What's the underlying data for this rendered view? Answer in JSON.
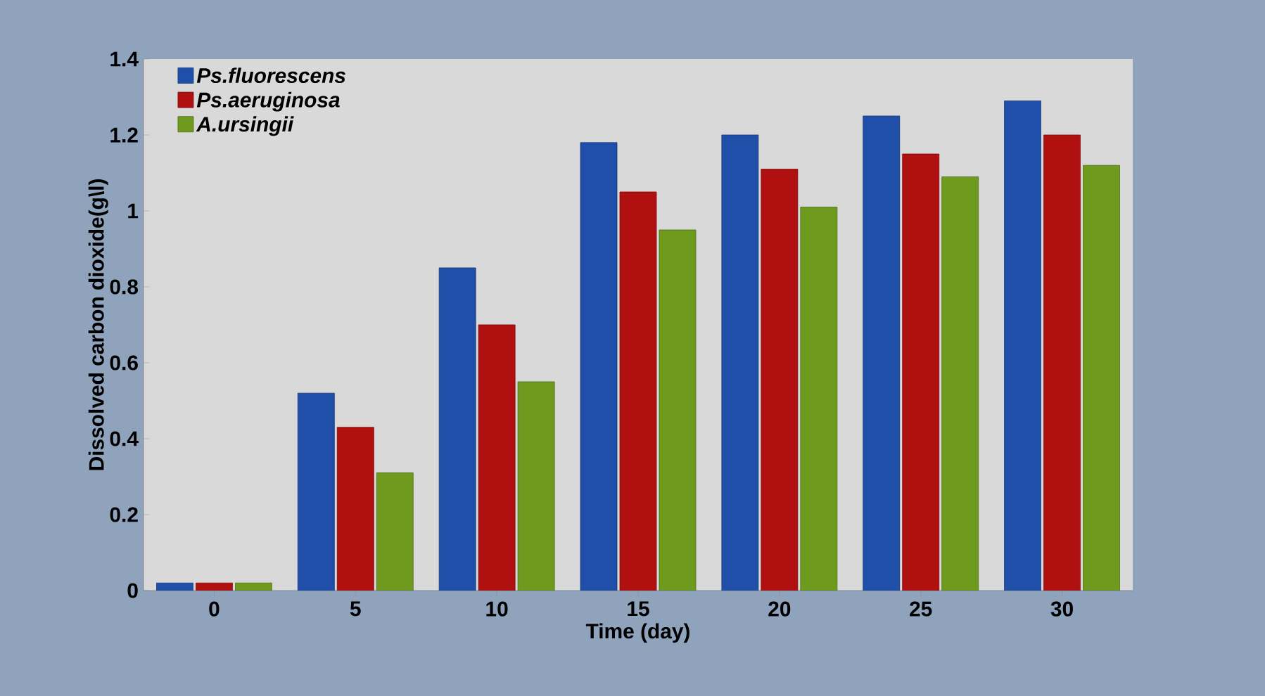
{
  "chart_data": {
    "type": "bar",
    "xlabel": "Time (day)",
    "ylabel": "Dissolved carbon dioxide(g\\l)",
    "categories": [
      "0",
      "5",
      "10",
      "15",
      "20",
      "25",
      "30"
    ],
    "series": [
      {
        "name": "*Ps.fluorescens*",
        "color": "#1f4fa8",
        "values": [
          0.02,
          0.52,
          0.85,
          1.18,
          1.2,
          1.25,
          1.29
        ]
      },
      {
        "name": "*Ps.aeruginosa*",
        "color": "#b01010",
        "values": [
          0.02,
          0.43,
          0.7,
          1.05,
          1.11,
          1.15,
          1.2
        ]
      },
      {
        "name": "*A.ursingii*",
        "color": "#6e9a1e",
        "values": [
          0.02,
          0.31,
          0.55,
          0.95,
          1.01,
          1.09,
          1.12
        ]
      }
    ],
    "ylim": [
      0,
      1.4
    ],
    "yticks": [
      0,
      0.2,
      0.4,
      0.6,
      0.8,
      {
        "value": 1,
        "label": "1"
      },
      1.2,
      1.4
    ],
    "grid": false,
    "legend": "top left"
  }
}
